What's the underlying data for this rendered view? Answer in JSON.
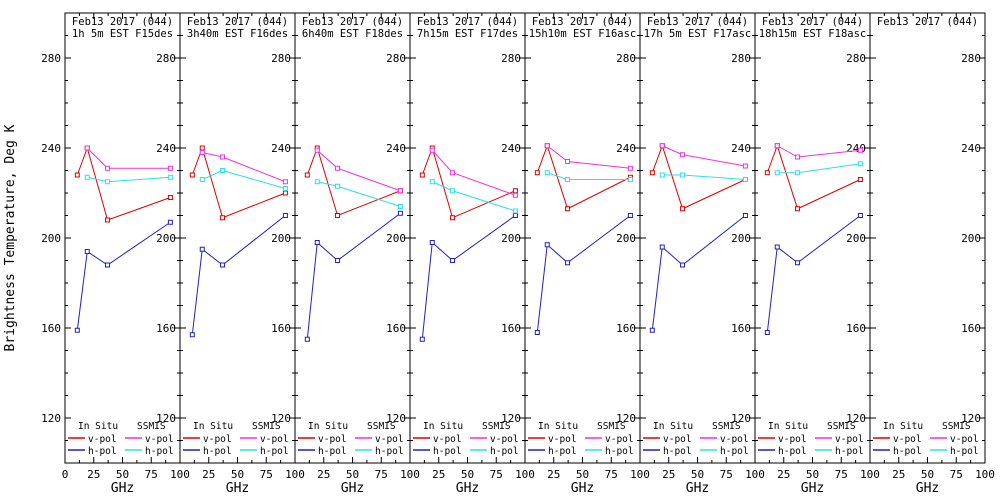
{
  "figure": {
    "background": "#ffffff",
    "y_axis_title": "Brightness Temperature, Deg K",
    "x_axis_unit": "GHz",
    "colors": {
      "in_situ_v_pol": "#dd0000",
      "in_situ_h_pol": "#2121bd",
      "ssmis_v_pol": "#ee33dd",
      "ssmis_h_pol": "#2ee0e0",
      "axis": "#000000"
    },
    "legend": {
      "column1_header": "In Situ",
      "column2_header": "SSMIS",
      "v_pol_label": "v-pol",
      "h_pol_label": "h-pol"
    }
  },
  "chart_data": {
    "type": "line",
    "title": "",
    "xlabel": "GHz",
    "ylabel": "Brightness Temperature, Deg K",
    "xlim": [
      0,
      100
    ],
    "ylim": [
      100,
      300
    ],
    "x_major_ticks": [
      0,
      25,
      50,
      75,
      100
    ],
    "x_minor_ticks": [
      12.5,
      37.5,
      62.5,
      87.5
    ],
    "y_major_ticks": [
      120,
      160,
      200,
      240,
      280
    ],
    "y_minor_step": 10,
    "grid": "off",
    "legend_position": "bottom-inside-each-panel",
    "in_situ_frequencies_ghz": [
      10.7,
      19.35,
      37,
      91.655
    ],
    "ssmis_frequencies_ghz": [
      19.35,
      37,
      91.655
    ],
    "series_meaning": {
      "in_situ_v_pol": "red squares, In Situ v-pol",
      "in_situ_h_pol": "blue squares, In Situ h-pol",
      "ssmis_v_pol": "magenta squares, SSMIS v-pol",
      "ssmis_h_pol": "cyan squares, SSMIS h-pol"
    },
    "panels": [
      {
        "title_line1": "Feb13 2017 (044)",
        "title_line2": "1h 5m EST F15des",
        "in_situ_v_pol": [
          228,
          240,
          208,
          218
        ],
        "in_situ_h_pol": [
          159,
          194,
          188,
          207
        ],
        "ssmis_v_pol": [
          240,
          231,
          231
        ],
        "ssmis_h_pol": [
          227,
          225,
          227
        ]
      },
      {
        "title_line1": "Feb13 2017 (044)",
        "title_line2": "3h40m EST F16des",
        "in_situ_v_pol": [
          228,
          240,
          209,
          220
        ],
        "in_situ_h_pol": [
          157,
          195,
          188,
          210
        ],
        "ssmis_v_pol": [
          238,
          236,
          225
        ],
        "ssmis_h_pol": [
          226,
          230,
          222
        ]
      },
      {
        "title_line1": "Feb13 2017 (044)",
        "title_line2": "6h40m EST F18des",
        "in_situ_v_pol": [
          228,
          240,
          210,
          221
        ],
        "in_situ_h_pol": [
          155,
          198,
          190,
          211
        ],
        "ssmis_v_pol": [
          239,
          231,
          221
        ],
        "ssmis_h_pol": [
          225,
          223,
          214
        ]
      },
      {
        "title_line1": "Feb13 2017 (044)",
        "title_line2": "7h15m EST F17des",
        "in_situ_v_pol": [
          228,
          240,
          209,
          221
        ],
        "in_situ_h_pol": [
          155,
          198,
          190,
          210
        ],
        "ssmis_v_pol": [
          239,
          229,
          219
        ],
        "ssmis_h_pol": [
          225,
          221,
          212
        ]
      },
      {
        "title_line1": "Feb13 2017 (044)",
        "title_line2": "15h10m EST F16asc",
        "in_situ_v_pol": [
          229,
          241,
          213,
          227
        ],
        "in_situ_h_pol": [
          158,
          197,
          189,
          210
        ],
        "ssmis_v_pol": [
          241,
          234,
          231
        ],
        "ssmis_h_pol": [
          229,
          226,
          226
        ]
      },
      {
        "title_line1": "Feb13 2017 (044)",
        "title_line2": "17h 5m EST F17asc",
        "in_situ_v_pol": [
          229,
          241,
          213,
          226
        ],
        "in_situ_h_pol": [
          159,
          196,
          188,
          210
        ],
        "ssmis_v_pol": [
          241,
          237,
          232
        ],
        "ssmis_h_pol": [
          228,
          228,
          226
        ]
      },
      {
        "title_line1": "Feb13 2017 (044)",
        "title_line2": "18h15m EST F18asc",
        "in_situ_v_pol": [
          229,
          241,
          213,
          226
        ],
        "in_situ_h_pol": [
          158,
          196,
          189,
          210
        ],
        "ssmis_v_pol": [
          241,
          236,
          239
        ],
        "ssmis_h_pol": [
          229,
          229,
          233
        ]
      },
      {
        "title_line1": "Feb13 2017 (044)",
        "title_line2": "",
        "in_situ_v_pol": [],
        "in_situ_h_pol": [],
        "ssmis_v_pol": [],
        "ssmis_h_pol": []
      }
    ]
  }
}
